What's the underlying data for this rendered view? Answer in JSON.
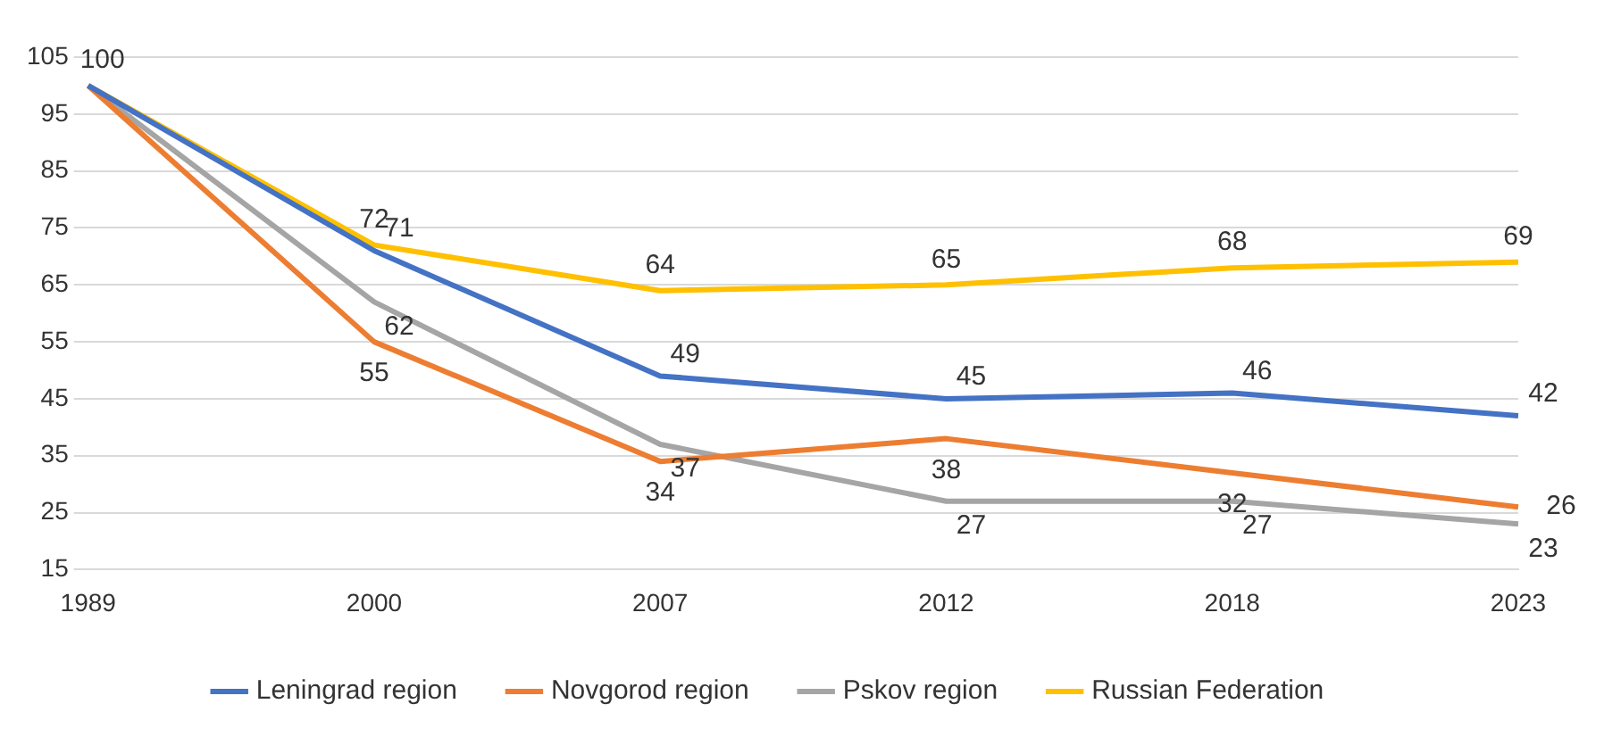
{
  "chart_data": {
    "type": "line",
    "categories": [
      "1989",
      "2000",
      "2007",
      "2012",
      "2018",
      "2023"
    ],
    "series": [
      {
        "name": "Leningrad region",
        "color": "#4472c4",
        "values": [
          100,
          71,
          49,
          45,
          46,
          42
        ],
        "value_labels": [
          null,
          "71",
          "49",
          "45",
          "46",
          "42"
        ]
      },
      {
        "name": "Novgorod region",
        "color": "#ed7d31",
        "values": [
          100,
          55,
          34,
          38,
          32,
          26
        ],
        "value_labels": [
          null,
          "55",
          "34",
          "38",
          "32",
          "26"
        ]
      },
      {
        "name": "Pskov region",
        "color": "#a5a5a5",
        "values": [
          100,
          62,
          37,
          27,
          27,
          23
        ],
        "value_labels": [
          null,
          "62",
          "37",
          "27",
          "27",
          "23"
        ]
      },
      {
        "name": "Russian Federation",
        "color": "#ffc000",
        "values": [
          100,
          72,
          64,
          65,
          68,
          69
        ],
        "value_labels": [
          "100",
          "72",
          "64",
          "65",
          "68",
          "69"
        ]
      }
    ],
    "ylim": [
      15,
      105
    ],
    "yticks": [
      15,
      25,
      35,
      45,
      55,
      65,
      75,
      85,
      95,
      105
    ],
    "grid": "y",
    "legend": "bottom",
    "marker": "none",
    "line_style": "solid"
  }
}
